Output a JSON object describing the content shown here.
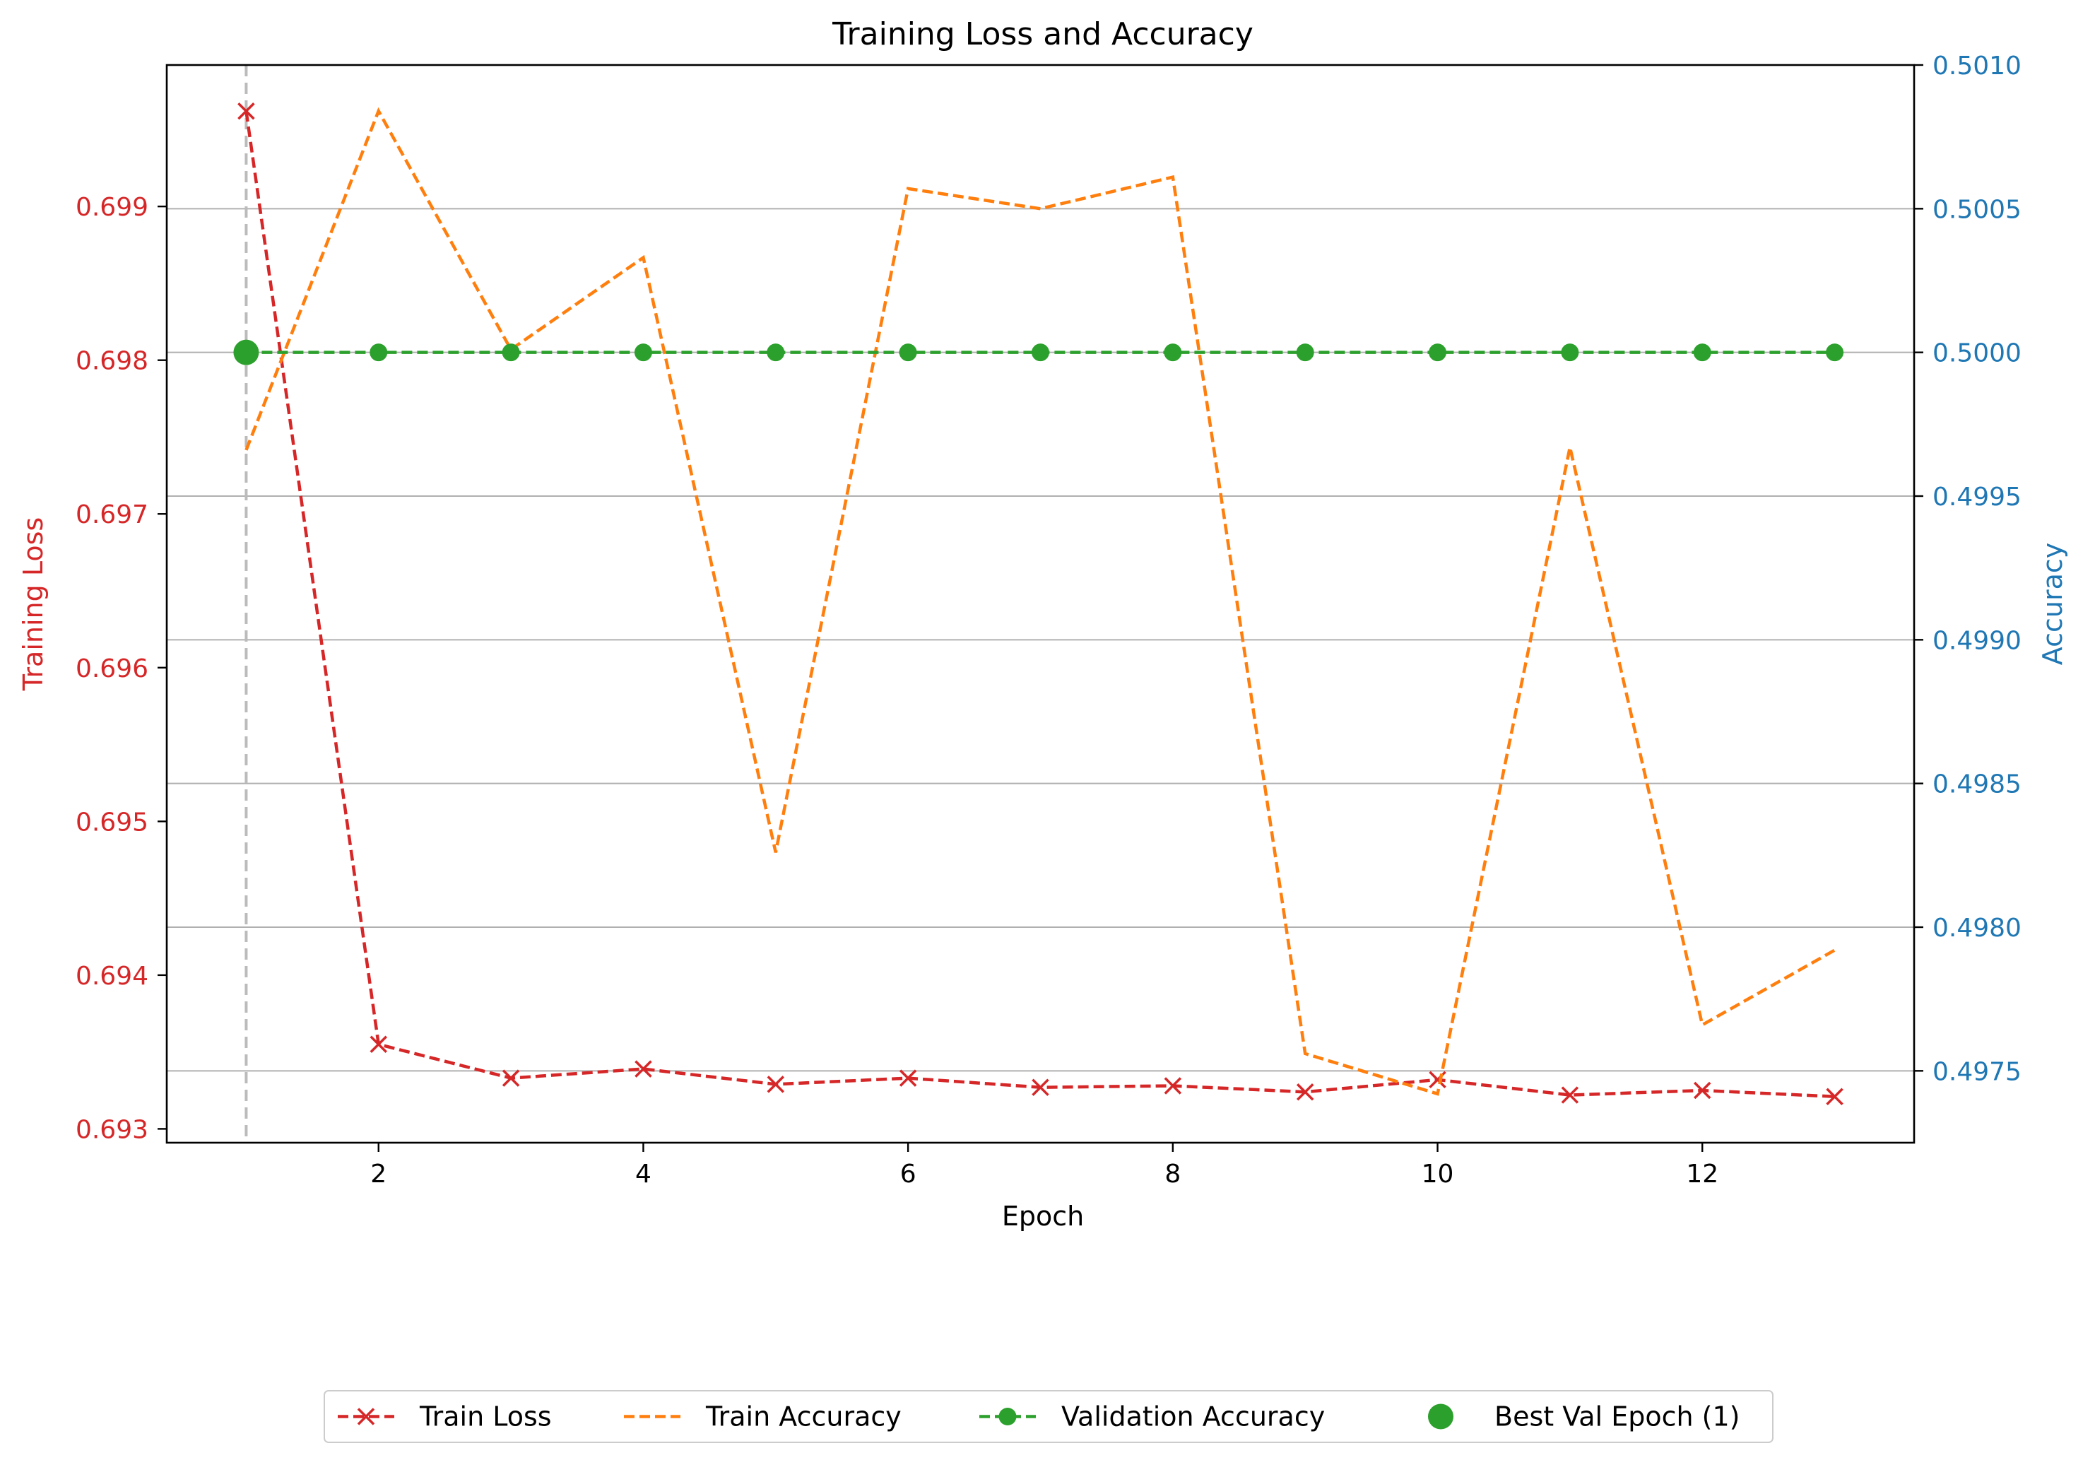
{
  "chart_data": {
    "type": "line",
    "title": "Training Loss and Accuracy",
    "xlabel": "Epoch",
    "ylabel_left": "Training Loss",
    "ylabel_right": "Accuracy",
    "xlim": [
      0.4,
      13.6
    ],
    "ylim_left": [
      0.69291,
      0.69992
    ],
    "ylim_right": [
      0.49725,
      0.501
    ],
    "x_ticks": [
      2,
      4,
      6,
      8,
      10,
      12
    ],
    "y_left_ticks": [
      0.693,
      0.694,
      0.695,
      0.696,
      0.697,
      0.698,
      0.699
    ],
    "y_left_tick_labels": [
      "0.693",
      "0.694",
      "0.695",
      "0.696",
      "0.697",
      "0.698",
      "0.699"
    ],
    "y_right_ticks": [
      0.4975,
      0.498,
      0.4985,
      0.499,
      0.4995,
      0.5,
      0.5005,
      0.501
    ],
    "y_right_tick_labels": [
      "0.4975",
      "0.4980",
      "0.4985",
      "0.4990",
      "0.4995",
      "0.5000",
      "0.5005",
      "0.5010"
    ],
    "grid": "horizontal, right axis",
    "legend_placement": "bottom-center",
    "x": [
      1,
      2,
      3,
      4,
      5,
      6,
      7,
      8,
      9,
      10,
      11,
      12,
      13
    ],
    "series": [
      {
        "name": "Train Loss",
        "axis": "left",
        "style": "dashed-x-marker",
        "color": "#d62728",
        "values": [
          0.69962,
          0.69355,
          0.69333,
          0.69339,
          0.69329,
          0.69333,
          0.69327,
          0.69328,
          0.69324,
          0.69332,
          0.69322,
          0.69325,
          0.69321
        ]
      },
      {
        "name": "Train Accuracy",
        "axis": "right",
        "style": "dashed",
        "color": "#ff7f0e",
        "values": [
          0.49966,
          0.50084,
          0.50001,
          0.50033,
          0.49826,
          0.50057,
          0.5005,
          0.50061,
          0.49756,
          0.49742,
          0.49967,
          0.49766,
          0.49792
        ]
      },
      {
        "name": "Validation Accuracy",
        "axis": "right",
        "style": "dashed-circle-marker",
        "color": "#2ca02c",
        "values": [
          0.5,
          0.5,
          0.5,
          0.5,
          0.5,
          0.5,
          0.5,
          0.5,
          0.5,
          0.5,
          0.5,
          0.5,
          0.5
        ]
      }
    ],
    "best_epoch": {
      "name": "Best Val Epoch (1)",
      "epoch": 1,
      "value": 0.5,
      "color": "#2ca02c"
    },
    "best_epoch_line_color": "#bbbbbb",
    "left_axis_color": "#d62728",
    "right_axis_color": "#1f77b4",
    "grid_color": "#b0b0b0"
  }
}
